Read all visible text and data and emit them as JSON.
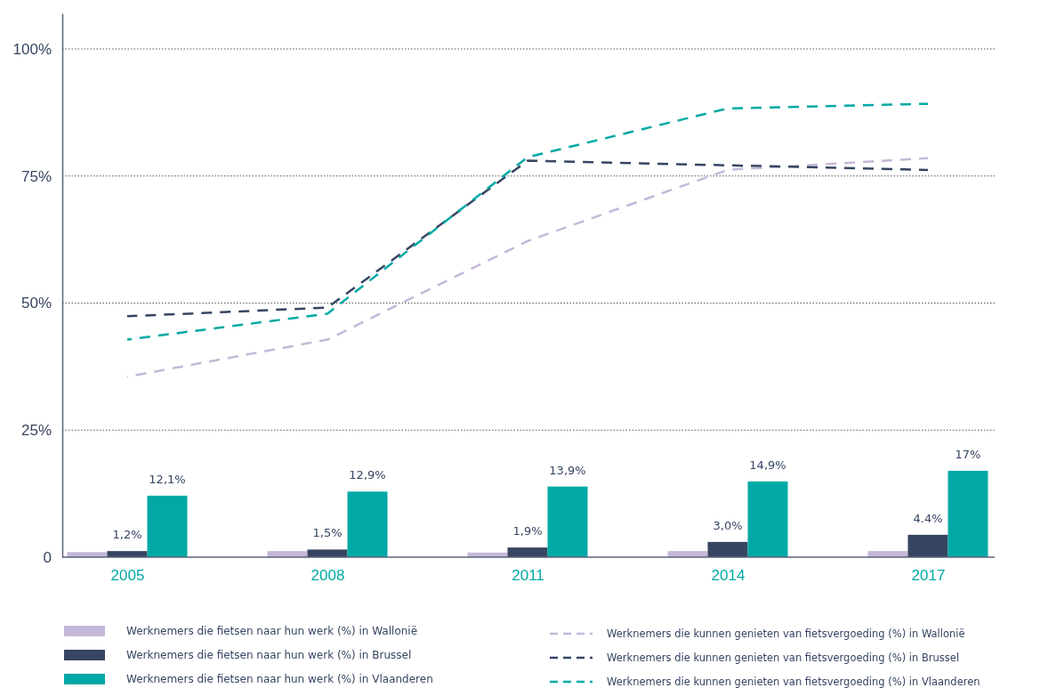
{
  "chart_data": {
    "type": "bar",
    "categories": [
      "2005",
      "2008",
      "2011",
      "2014",
      "2017"
    ],
    "ylim": [
      0,
      107
    ],
    "yticks": [
      0,
      {
        "value": 25,
        "label": "25%"
      },
      {
        "value": 50,
        "label": "50%"
      },
      {
        "value": 75,
        "label": "75%"
      },
      {
        "value": 100,
        "label": "100%"
      }
    ],
    "grid": "y",
    "legend": "bottom",
    "series": [
      {
        "name": "Werknemers die fietsen naar hun werk (%) in Wallonië",
        "color": "#c5b8d8",
        "values": [
          1.0,
          1.2,
          0.9,
          1.2,
          1.2
        ]
      },
      {
        "name": "Werknemers die fietsen naar hun werk (%) in Brussel",
        "color": "#364562",
        "values": [
          1.2,
          1.5,
          1.9,
          3.0,
          4.4
        ],
        "value_labels": [
          "1,2%",
          "1,5%",
          "1,9%",
          "3,0%",
          "4.4%"
        ]
      },
      {
        "name": "Werknemers die fietsen naar hun werk (%) in Vlaanderen",
        "color": "#00a9a5",
        "values": [
          12.1,
          12.9,
          13.9,
          14.9,
          17
        ],
        "value_labels": [
          "12,1%",
          "12,9%",
          "13,9%",
          "14,9%",
          "17%"
        ]
      },
      {
        "type": "line",
        "line_style": "dashed",
        "name": "Werknemers die kunnen genieten van fietsvergoeding (%) in Wallonië",
        "color": "#c5b8d8",
        "values": [
          35.5,
          42.8,
          62.2,
          76.2,
          78.5
        ]
      },
      {
        "type": "line",
        "line_style": "dashed",
        "name": "Werknemers die kunnen genieten van fietsvergoeding (%) in Brussel",
        "color": "#364562",
        "values": [
          47.4,
          49.1,
          78.0,
          77.1,
          76.2
        ]
      },
      {
        "type": "line",
        "line_style": "dashed",
        "name": "Werknemers die kunnen genieten van fietsvergoeding (%) in Vlaanderen",
        "color": "#00a9a5",
        "values": [
          42.8,
          47.9,
          78.7,
          88.3,
          89.2
        ]
      }
    ]
  }
}
